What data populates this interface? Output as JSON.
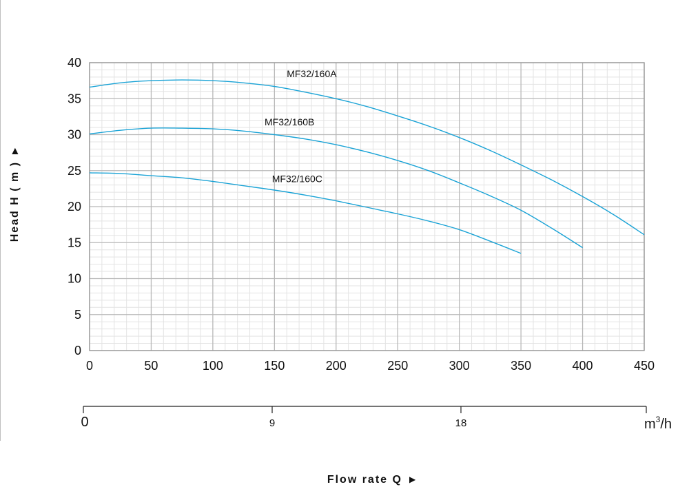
{
  "chart_data": {
    "type": "line",
    "ylabel": "Head H ( m )",
    "xlabel": "Flow rate Q",
    "xlim": [
      0,
      450
    ],
    "ylim": [
      0,
      40
    ],
    "x_ticks": [
      0,
      50,
      100,
      150,
      200,
      250,
      300,
      350,
      400,
      450
    ],
    "y_ticks": [
      0,
      5,
      10,
      15,
      20,
      25,
      30,
      35,
      40
    ],
    "secondary_axis": {
      "ticks": [
        0,
        9,
        18
      ],
      "unit_base": "m",
      "unit_sup": "3",
      "unit_tail": "/h"
    },
    "grid": true,
    "line_color": "#1aa3d6",
    "series": [
      {
        "name": "MF32/160A",
        "x": [
          0,
          25,
          50,
          75,
          100,
          125,
          150,
          175,
          200,
          225,
          250,
          275,
          300,
          325,
          350,
          375,
          400,
          425,
          450
        ],
        "y": [
          36.6,
          37.2,
          37.5,
          37.6,
          37.5,
          37.2,
          36.7,
          35.9,
          35.0,
          33.9,
          32.6,
          31.2,
          29.6,
          27.8,
          25.8,
          23.7,
          21.4,
          18.9,
          16.1
        ]
      },
      {
        "name": "MF32/160B",
        "x": [
          0,
          25,
          50,
          75,
          100,
          125,
          150,
          175,
          200,
          225,
          250,
          275,
          300,
          325,
          350,
          375,
          400
        ],
        "y": [
          30.1,
          30.6,
          30.9,
          30.9,
          30.8,
          30.5,
          30.0,
          29.4,
          28.6,
          27.6,
          26.4,
          25.0,
          23.3,
          21.5,
          19.5,
          17.0,
          14.3
        ]
      },
      {
        "name": "MF32/160C",
        "x": [
          0,
          25,
          50,
          75,
          100,
          125,
          150,
          175,
          200,
          225,
          250,
          275,
          300,
          325,
          350
        ],
        "y": [
          24.7,
          24.6,
          24.3,
          24.0,
          23.5,
          22.9,
          22.3,
          21.6,
          20.8,
          19.9,
          19.0,
          18.0,
          16.8,
          15.2,
          13.5
        ]
      }
    ],
    "labels": [
      {
        "text": "MF32/160A",
        "x": 160,
        "y": 38.0
      },
      {
        "text": "MF32/160B",
        "x": 142,
        "y": 31.3
      },
      {
        "text": "MF32/160C",
        "x": 148,
        "y": 23.4
      }
    ]
  }
}
